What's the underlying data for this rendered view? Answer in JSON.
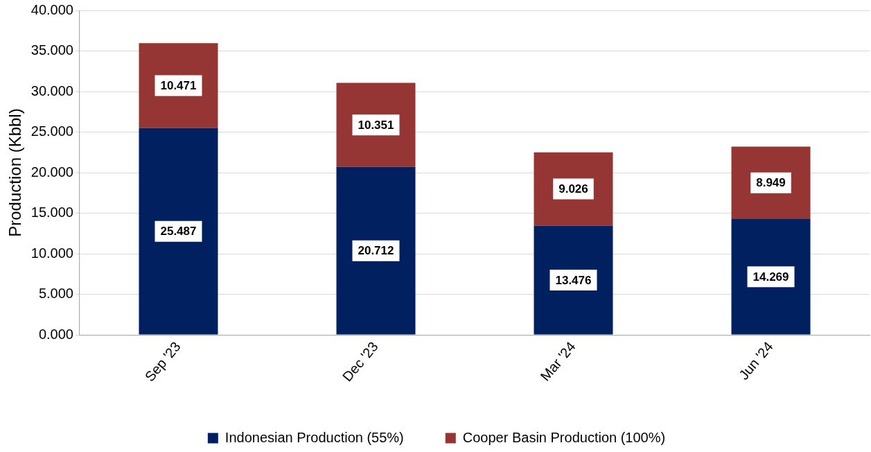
{
  "chart_data": {
    "type": "bar",
    "ylabel": "Production (Kbbl)",
    "categories": [
      "Sep '23",
      "Dec '23",
      "Mar '24",
      "Jun '24"
    ],
    "series": [
      {
        "name": "Indonesian Production (55%)",
        "color": "#002060",
        "values": [
          25.487,
          20.712,
          13.476,
          14.269
        ]
      },
      {
        "name": "Cooper Basin Production (100%)",
        "color": "#963634",
        "values": [
          10.471,
          10.351,
          9.026,
          8.949
        ]
      }
    ],
    "stacked": true,
    "data_labels": true,
    "ylim": [
      0,
      40
    ],
    "yticks": [
      {
        "value": 0,
        "label": "0.000"
      },
      {
        "value": 5,
        "label": "5.000"
      },
      {
        "value": 10,
        "label": "10.000"
      },
      {
        "value": 15,
        "label": "15.000"
      },
      {
        "value": 20,
        "label": "20.000"
      },
      {
        "value": 25,
        "label": "25.000"
      },
      {
        "value": 30,
        "label": "30.000"
      },
      {
        "value": 35,
        "label": "35.000"
      },
      {
        "value": 40,
        "label": "40.000"
      }
    ],
    "grid": "y",
    "legend": "bottom"
  }
}
